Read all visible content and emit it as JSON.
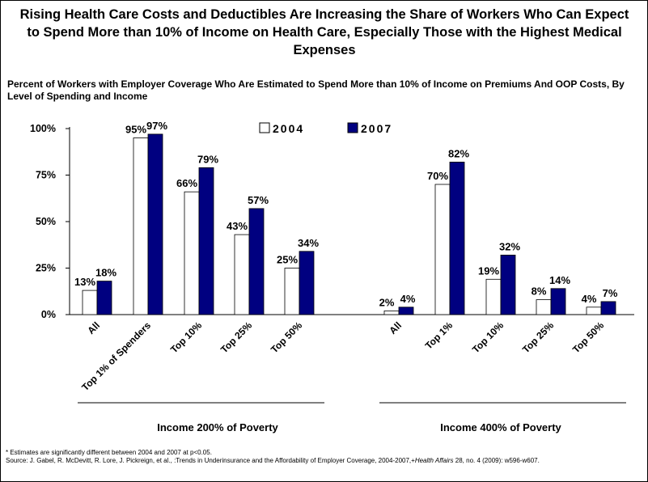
{
  "title": "Rising Health Care Costs and Deductibles Are Increasing the Share of Workers Who Can Expect to Spend More than 10% of Income on Health Care, Especially Those with the Highest Medical Expenses",
  "subtitle": "Percent of Workers with Employer Coverage Who Are Estimated to Spend More than 10% of Income on Premiums And OOP Costs, By Level of Spending and Income",
  "footnote": "* Estimates are significantly different between 2004 and 2007 at p<0.05.",
  "source": {
    "prefix": "Source: J. Gabel, R. McDevitt, R. Lore, J. Pickreign, et al., :Trends in Underinsurance and the Affordability of Employer Coverage, 2004-2007,+",
    "journal": "Health Affairs",
    "suffix": " 28, no. 4 (2009): w596-w607."
  },
  "chart_data": {
    "type": "bar",
    "ylim": [
      0,
      100
    ],
    "yticks": [
      "0%",
      "25%",
      "50%",
      "75%",
      "100%"
    ],
    "ytick_values": [
      0,
      25,
      50,
      75,
      100
    ],
    "grid": false,
    "legend_position": "top",
    "series": [
      {
        "name": "2004",
        "color": "#ffffff"
      },
      {
        "name": "2007",
        "color": "#000080"
      }
    ],
    "groups": [
      {
        "name": "Income 200% of Poverty",
        "categories": [
          "All",
          "Top 1% of Spenders",
          "Top 10%",
          "Top 25%",
          "Top 50%"
        ],
        "values_2004": [
          13,
          95,
          66,
          43,
          25
        ],
        "values_2007": [
          18,
          97,
          79,
          57,
          34
        ],
        "labels_2004": [
          "13%",
          "95%",
          "66%",
          "43%",
          "25%"
        ],
        "labels_2007": [
          "18%",
          "97%",
          "79%",
          "57%",
          "34%"
        ]
      },
      {
        "name": "Income 400% of Poverty",
        "categories": [
          "All",
          "Top 1%",
          "Top 10%",
          "Top 25%",
          "Top 50%"
        ],
        "values_2004": [
          2,
          70,
          19,
          8,
          4
        ],
        "values_2007": [
          4,
          82,
          32,
          14,
          7
        ],
        "labels_2004": [
          "2%",
          "70%",
          "19%",
          "8%",
          "4%"
        ],
        "labels_2007": [
          "4%",
          "82%",
          "32%",
          "14%",
          "7%"
        ]
      }
    ]
  }
}
